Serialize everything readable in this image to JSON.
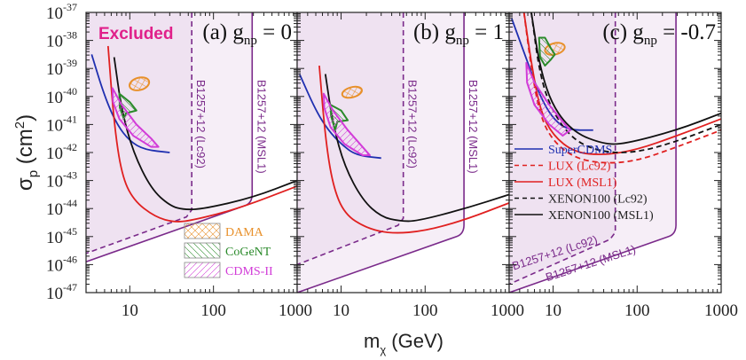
{
  "chart_data": {
    "type": "line",
    "title": "",
    "xlabel": "m_χ (GeV)",
    "xlabel_main": "m",
    "xlabel_sub": "χ",
    "xlabel_unit": " (GeV)",
    "ylabel": "σ_p (cm^2)",
    "ylabel_main": "σ",
    "ylabel_sub": "p",
    "ylabel_unit": " (cm",
    "ylabel_sup": "2",
    "ylabel_close": ")",
    "xscale": "log",
    "yscale": "log",
    "xlim": [
      3,
      1000
    ],
    "ylim_exponents": [
      -47,
      -37
    ],
    "xticks": [
      10,
      100,
      1000
    ],
    "xtick_labels": [
      "10",
      "100",
      "1000"
    ],
    "yticks_exponents": [
      -37,
      -38,
      -39,
      -40,
      -41,
      -42,
      -43,
      -44,
      -45,
      -46,
      -47
    ],
    "ytick_base": "10",
    "excluded_label": "Excluded",
    "colors": {
      "excluded_fill": "#f0e4f2",
      "bound": "#7a2a8a",
      "supercdms": "#1f2fb0",
      "lux": "#e02020",
      "xenon": "#111111",
      "dama": "#e8902a",
      "cogent": "#2a8a2a",
      "cdms": "#d23cd8"
    },
    "panels": [
      {
        "id": "a",
        "label": "(a) g",
        "label_sub": "np",
        "label_value": " = 0",
        "bound_lc92": {
          "name": "B1257+12 (Lc92)",
          "x_cut": 55,
          "lower": [
            [
              3,
              -45.6
            ],
            [
              55,
              -44.3
            ]
          ]
        },
        "bound_msl1": {
          "name": "B1257+12 (MSL1)",
          "x_cut": 290,
          "lower": [
            [
              3,
              -45.9
            ],
            [
              290,
              -43.8
            ]
          ]
        },
        "series": [
          {
            "name": "SuperCDMS",
            "style": "solid",
            "color_key": "supercdms",
            "points": [
              [
                3.5,
                -38.5
              ],
              [
                5,
                -40.0
              ],
              [
                7,
                -41.0
              ],
              [
                10,
                -41.6
              ],
              [
                15,
                -41.9
              ],
              [
                30,
                -42.0
              ]
            ]
          },
          {
            "name": "LUX (MSL1)",
            "style": "solid",
            "color_key": "lux",
            "points": [
              [
                5.5,
                -38.2
              ],
              [
                6.5,
                -41.0
              ],
              [
                8,
                -42.8
              ],
              [
                11,
                -43.7
              ],
              [
                20,
                -44.3
              ],
              [
                35,
                -44.5
              ],
              [
                60,
                -44.4
              ],
              [
                200,
                -44.0
              ],
              [
                1000,
                -43.2
              ]
            ]
          },
          {
            "name": "XENON100 (MSL1)",
            "style": "solid",
            "color_key": "xenon",
            "points": [
              [
                6.5,
                -38.6
              ],
              [
                8,
                -40.5
              ],
              [
                11,
                -42.0
              ],
              [
                18,
                -43.3
              ],
              [
                30,
                -43.9
              ],
              [
                45,
                -44.05
              ],
              [
                80,
                -44.0
              ],
              [
                300,
                -43.6
              ],
              [
                1000,
                -43.0
              ]
            ]
          },
          {
            "name": "DAMA",
            "type": "contour",
            "color_key": "dama",
            "center": [
              13,
              -39.55
            ],
            "rx": 0.12,
            "ry": 0.22
          },
          {
            "name": "CoGeNT",
            "type": "contour",
            "color_key": "cogent",
            "points": [
              [
                7.5,
                -39.9
              ],
              [
                10,
                -40.2
              ],
              [
                12,
                -40.5
              ],
              [
                9,
                -40.6
              ],
              [
                8.5,
                -40.8
              ],
              [
                7.6,
                -40.4
              ]
            ]
          },
          {
            "name": "CDMS-II",
            "type": "contour",
            "color_key": "cdms",
            "points": [
              [
                6.2,
                -39.7
              ],
              [
                8,
                -40.3
              ],
              [
                12,
                -41.0
              ],
              [
                18,
                -41.5
              ],
              [
                22,
                -41.8
              ],
              [
                18,
                -41.8
              ],
              [
                11,
                -41.4
              ],
              [
                7.5,
                -40.8
              ],
              [
                6.3,
                -40.2
              ]
            ]
          }
        ],
        "legend": [
          {
            "label": "DAMA",
            "color_key": "dama"
          },
          {
            "label": "CoGeNT",
            "color_key": "cogent"
          },
          {
            "label": "CDMS-II",
            "color_key": "cdms"
          }
        ]
      },
      {
        "id": "b",
        "label": "(b) g",
        "label_sub": "np",
        "label_value": " = 1",
        "bound_lc92": {
          "name": "B1257+12 (Lc92)",
          "x_cut": 55,
          "lower": [
            [
              3,
              -46.0
            ],
            [
              55,
              -44.6
            ]
          ]
        },
        "bound_msl1": {
          "name": "B1257+12 (MSL1)",
          "x_cut": 290,
          "lower": [
            [
              3,
              -47.0
            ],
            [
              290,
              -44.9
            ]
          ]
        },
        "series": [
          {
            "name": "SuperCDMS",
            "style": "solid",
            "color_key": "supercdms",
            "points": [
              [
                3.2,
                -39.2
              ],
              [
                5,
                -40.5
              ],
              [
                7,
                -41.2
              ],
              [
                10,
                -41.7
              ],
              [
                15,
                -42.1
              ],
              [
                30,
                -42.2
              ]
            ]
          },
          {
            "name": "LUX (MSL1)",
            "style": "solid",
            "color_key": "lux",
            "points": [
              [
                5.5,
                -38.9
              ],
              [
                6.5,
                -41.5
              ],
              [
                8,
                -43.2
              ],
              [
                11,
                -44.2
              ],
              [
                20,
                -44.7
              ],
              [
                40,
                -44.9
              ],
              [
                100,
                -44.8
              ],
              [
                300,
                -44.4
              ],
              [
                1000,
                -43.8
              ]
            ]
          },
          {
            "name": "XENON100 (MSL1)",
            "style": "solid",
            "color_key": "xenon",
            "points": [
              [
                6.5,
                -39.2
              ],
              [
                8,
                -41.0
              ],
              [
                11,
                -42.5
              ],
              [
                18,
                -43.7
              ],
              [
                30,
                -44.3
              ],
              [
                50,
                -44.45
              ],
              [
                80,
                -44.45
              ],
              [
                300,
                -44.0
              ],
              [
                1000,
                -43.5
              ]
            ]
          },
          {
            "name": "DAMA",
            "type": "contour",
            "color_key": "dama",
            "center": [
              13.5,
              -39.85
            ],
            "rx": 0.12,
            "ry": 0.18
          },
          {
            "name": "CoGeNT",
            "type": "contour",
            "color_key": "cogent",
            "points": [
              [
                7.5,
                -40.3
              ],
              [
                10,
                -40.5
              ],
              [
                12,
                -40.85
              ],
              [
                9,
                -40.9
              ],
              [
                8.5,
                -41.2
              ],
              [
                7.6,
                -40.7
              ]
            ]
          },
          {
            "name": "CDMS-II",
            "type": "contour",
            "color_key": "cdms",
            "points": [
              [
                6.2,
                -39.9
              ],
              [
                8,
                -40.5
              ],
              [
                12,
                -41.2
              ],
              [
                18,
                -41.8
              ],
              [
                22,
                -42.1
              ],
              [
                18,
                -42.1
              ],
              [
                11,
                -41.7
              ],
              [
                7.5,
                -41.1
              ],
              [
                6.3,
                -40.4
              ]
            ]
          }
        ],
        "legend": []
      },
      {
        "id": "c",
        "label": "(c) g",
        "label_sub": "np",
        "label_value": " = -0.7",
        "bound_lc92": {
          "name": "B1257+12 (Lc92)",
          "x_cut": 55,
          "lower": [
            [
              3,
              -46.7
            ],
            [
              55,
              -45.1
            ]
          ]
        },
        "bound_msl1": {
          "name": "B1257+12 (MSL1)",
          "x_cut": 290,
          "lower": [
            [
              3,
              -47.0
            ],
            [
              290,
              -44.9
            ]
          ]
        },
        "series": [
          {
            "name": "SuperCDMS",
            "style": "solid",
            "color_key": "supercdms",
            "points": [
              [
                3.2,
                -37.2
              ],
              [
                5,
                -38.8
              ],
              [
                7,
                -40.0
              ],
              [
                10,
                -40.8
              ],
              [
                15,
                -41.2
              ],
              [
                30,
                -41.2
              ]
            ]
          },
          {
            "name": "LUX (Lc92)",
            "style": "dashed",
            "color_key": "lux",
            "points": [
              [
                4.5,
                -37.0
              ],
              [
                5.5,
                -39.0
              ],
              [
                7,
                -40.7
              ],
              [
                10,
                -41.6
              ],
              [
                18,
                -42.2
              ],
              [
                40,
                -42.4
              ],
              [
                100,
                -42.3
              ],
              [
                300,
                -41.8
              ],
              [
                1000,
                -41.2
              ]
            ]
          },
          {
            "name": "LUX (MSL1)",
            "style": "solid",
            "color_key": "lux",
            "points": [
              [
                4.5,
                -37.0
              ],
              [
                5.5,
                -38.8
              ],
              [
                7,
                -40.5
              ],
              [
                10,
                -41.4
              ],
              [
                18,
                -42.0
              ],
              [
                40,
                -42.1
              ],
              [
                100,
                -41.9
              ],
              [
                300,
                -41.4
              ],
              [
                1000,
                -40.8
              ]
            ]
          },
          {
            "name": "XENON100 (Lc92)",
            "style": "dashed",
            "color_key": "xenon",
            "points": [
              [
                5.5,
                -37.0
              ],
              [
                7,
                -39.3
              ],
              [
                10,
                -40.6
              ],
              [
                18,
                -41.6
              ],
              [
                40,
                -42.0
              ],
              [
                100,
                -42.0
              ],
              [
                300,
                -41.6
              ],
              [
                1000,
                -41.0
              ]
            ]
          },
          {
            "name": "XENON100 (MSL1)",
            "style": "solid",
            "color_key": "xenon",
            "points": [
              [
                5.5,
                -37.0
              ],
              [
                7,
                -39.0
              ],
              [
                10,
                -40.4
              ],
              [
                18,
                -41.3
              ],
              [
                40,
                -41.7
              ],
              [
                70,
                -41.7
              ],
              [
                300,
                -41.2
              ],
              [
                1000,
                -40.6
              ]
            ]
          },
          {
            "name": "DAMA",
            "type": "contour",
            "color_key": "dama",
            "center": [
              10.5,
              -38.3
            ],
            "rx": 0.12,
            "ry": 0.2
          },
          {
            "name": "CoGeNT",
            "type": "contour",
            "color_key": "cogent",
            "points": [
              [
                6.8,
                -37.9
              ],
              [
                8,
                -37.9
              ],
              [
                9.5,
                -38.3
              ],
              [
                10.5,
                -38.5
              ],
              [
                9.3,
                -38.7
              ],
              [
                8,
                -38.9
              ],
              [
                7,
                -38.6
              ]
            ]
          },
          {
            "name": "CDMS-II",
            "type": "contour",
            "color_key": "cdms",
            "points": [
              [
                4.8,
                -38.8
              ],
              [
                6,
                -39.5
              ],
              [
                9,
                -40.3
              ],
              [
                13,
                -40.9
              ],
              [
                16,
                -41.2
              ],
              [
                13,
                -41.4
              ],
              [
                9,
                -41.0
              ],
              [
                6,
                -40.3
              ],
              [
                4.9,
                -39.5
              ]
            ]
          }
        ],
        "legend": [
          {
            "label": "SuperCDMS",
            "color_key": "supercdms",
            "style": "solid"
          },
          {
            "label": "LUX (Lc92)",
            "color_key": "lux",
            "style": "dashed"
          },
          {
            "label": "LUX (MSL1)",
            "color_key": "lux",
            "style": "solid"
          },
          {
            "label": "XENON100 (Lc92)",
            "color_key": "xenon",
            "style": "dashed"
          },
          {
            "label": "XENON100 (MSL1)",
            "color_key": "xenon",
            "style": "solid"
          }
        ]
      }
    ]
  }
}
